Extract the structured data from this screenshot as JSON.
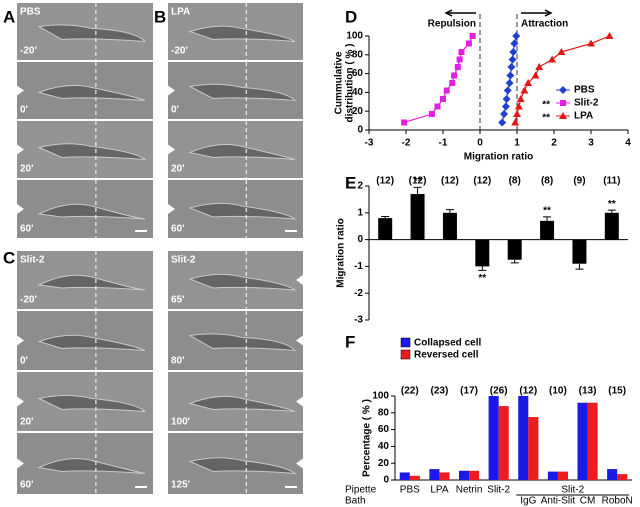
{
  "micrographs": [
    {
      "label": "A",
      "condition": "PBS",
      "times": [
        "-20'",
        "0'",
        "20'",
        "60'"
      ]
    },
    {
      "label": "B",
      "condition": "LPA",
      "times": [
        "-20'",
        "0'",
        "20'",
        "60'"
      ]
    },
    {
      "label": "C",
      "condition": "Slit-2",
      "times": [
        "-20'",
        "0'",
        "20'",
        "60'"
      ]
    },
    {
      "condition": "Slit-2",
      "times": [
        "65'",
        "80'",
        "100'",
        "125'"
      ]
    }
  ],
  "chart_data": [
    {
      "type": "line",
      "label": "D",
      "xlabel": "Migration ratio",
      "ylabel": [
        "Cummulative",
        "distribution ( % )"
      ],
      "xlim": [
        -3,
        4
      ],
      "xticks": [
        -3,
        -2,
        -1,
        0,
        1,
        2,
        3,
        4
      ],
      "ylim": [
        0,
        100
      ],
      "yticks": [
        0,
        20,
        40,
        60,
        80,
        100
      ],
      "vlines": [
        0,
        1
      ],
      "annotations": [
        "Repulsion",
        "Attraction"
      ],
      "series": [
        {
          "name": "PBS",
          "color": "#1f3fd0",
          "marker": "diamond",
          "legend_mark": null,
          "x": [
            0.6,
            0.65,
            0.7,
            0.72,
            0.75,
            0.8,
            0.82,
            0.85,
            0.88,
            0.9,
            0.93,
            0.98
          ],
          "values": [
            8,
            17,
            25,
            33,
            42,
            50,
            58,
            67,
            75,
            83,
            92,
            100
          ]
        },
        {
          "name": "Slit-2",
          "color": "#e020e0",
          "marker": "square",
          "legend_mark": "**",
          "x": [
            -2.05,
            -1.3,
            -1.15,
            -1.0,
            -0.9,
            -0.75,
            -0.7,
            -0.6,
            -0.55,
            -0.5,
            -0.3,
            -0.2
          ],
          "values": [
            8,
            17,
            25,
            33,
            42,
            50,
            58,
            67,
            75,
            83,
            92,
            100
          ]
        },
        {
          "name": "LPA",
          "color": "#e01818",
          "marker": "triangle",
          "legend_mark": "**",
          "x": [
            0.95,
            1.0,
            1.05,
            1.1,
            1.2,
            1.3,
            1.5,
            1.6,
            1.95,
            2.2,
            3.0,
            3.5
          ],
          "values": [
            8,
            17,
            25,
            33,
            42,
            50,
            58,
            67,
            75,
            83,
            92,
            100
          ]
        }
      ]
    },
    {
      "type": "bar",
      "label": "E",
      "ylabel": "Migration ratio",
      "color": "#000000",
      "categories": [
        null,
        null,
        null,
        null,
        null,
        null,
        null,
        null
      ],
      "values": [
        0.8,
        1.7,
        1.0,
        -1.0,
        -0.75,
        0.7,
        -0.9,
        1.0
      ],
      "errors": [
        0.06,
        0.25,
        0.12,
        0.15,
        0.12,
        0.15,
        0.2,
        0.1
      ],
      "counts": [
        "(12)",
        "(12)",
        "(12)",
        "(12)",
        "(8)",
        "(8)",
        "(9)",
        "(11)"
      ],
      "significance": [
        null,
        "**",
        null,
        "**",
        null,
        "**",
        null,
        "**"
      ],
      "ylim": [
        -3,
        2
      ],
      "yticks": [
        -3,
        -2,
        -1,
        0,
        1,
        2
      ]
    },
    {
      "type": "bar",
      "label": "F",
      "ylabel": "Percentage ( % )",
      "categories": [
        null,
        null,
        null,
        null,
        null,
        null,
        null,
        null
      ],
      "counts": [
        "(22)",
        "(23)",
        "(17)",
        "(26)",
        "(12)",
        "(10)",
        "(13)",
        "(15)"
      ],
      "series": [
        {
          "name": "Collapsed cell",
          "color": "#1a1ae6",
          "values": [
            9,
            13,
            11,
            100,
            100,
            10,
            92,
            13
          ]
        },
        {
          "name": "Reversed cell",
          "color": "#ee1c1c",
          "values": [
            5,
            9,
            11,
            88,
            75,
            10,
            92,
            7
          ]
        }
      ],
      "ylim": [
        0,
        100
      ],
      "yticks": [
        0,
        20,
        40,
        60,
        80,
        100
      ],
      "pipette_label": "Pipette",
      "pipette": [
        "PBS",
        "LPA",
        "Netrin",
        "Slit-2",
        "Slit-2"
      ],
      "bath_label": "Bath",
      "bath": [
        "IgG",
        "Anti-Slit",
        "CM",
        "RoboN"
      ]
    }
  ]
}
